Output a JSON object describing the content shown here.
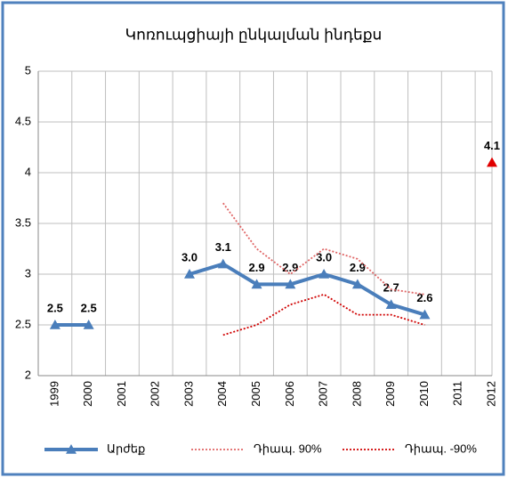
{
  "chart_data": {
    "type": "line",
    "title": "Կոռուպցիայի ընկալման ինդեքս",
    "categories": [
      "1999",
      "2000",
      "2001",
      "2002",
      "2003",
      "2004",
      "2005",
      "2006",
      "2007",
      "2008",
      "2009",
      "2010",
      "2011",
      "2012"
    ],
    "series": [
      {
        "name": "Արժեք",
        "color": "#4a7ebb",
        "marker": "triangle",
        "values": [
          2.5,
          2.5,
          null,
          null,
          3.0,
          3.1,
          2.9,
          2.9,
          3.0,
          2.9,
          2.7,
          2.6,
          null,
          4.1
        ],
        "value_labels": [
          "2.5",
          "2.5",
          null,
          null,
          "3.0",
          "3.1",
          "2.9",
          "2.9",
          "3.0",
          "2.9",
          "2.7",
          "2.6",
          null,
          "4.1"
        ],
        "marker_colors": [
          "#4a7ebb",
          "#4a7ebb",
          null,
          null,
          "#4a7ebb",
          "#4a7ebb",
          "#4a7ebb",
          "#4a7ebb",
          "#4a7ebb",
          "#4a7ebb",
          "#4a7ebb",
          "#4a7ebb",
          null,
          "#e00000"
        ]
      },
      {
        "name": "Դիապ. 90%",
        "color": "#e06666",
        "dash": "dotted",
        "values": [
          null,
          null,
          null,
          null,
          null,
          3.7,
          3.25,
          3.0,
          3.25,
          3.15,
          2.85,
          2.8,
          null,
          null
        ]
      },
      {
        "name": "Դիապ. -90%",
        "color": "#d00000",
        "dash": "dotted",
        "values": [
          null,
          null,
          null,
          null,
          null,
          2.4,
          2.5,
          2.7,
          2.8,
          2.6,
          2.6,
          2.5,
          null,
          null
        ]
      }
    ],
    "ylim": [
      2,
      5
    ],
    "yticks": [
      2,
      2.5,
      3,
      3.5,
      4,
      4.5,
      5
    ],
    "grid": true
  }
}
